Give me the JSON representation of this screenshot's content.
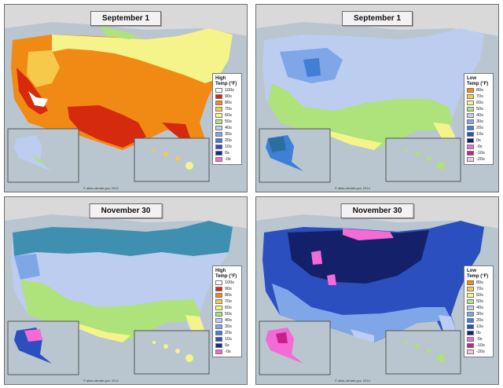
{
  "panels": [
    {
      "id": "p1",
      "title": "September 1",
      "legend_title": [
        "High",
        "Temp (°F)"
      ],
      "legend_items": [
        "100s",
        "90s",
        "80s",
        "70s",
        "60s",
        "50s",
        "40s",
        "30s",
        "20s",
        "10s",
        "0s",
        "-0s"
      ]
    },
    {
      "id": "p2",
      "title": "September 1",
      "legend_title": [
        "Low",
        "Temp (°F)"
      ],
      "legend_items": [
        "80s",
        "70s",
        "60s",
        "50s",
        "40s",
        "30s",
        "20s",
        "10s",
        "0s",
        "-0s",
        "-10s",
        "-20s"
      ]
    },
    {
      "id": "p3",
      "title": "November 30",
      "legend_title": [
        "High",
        "Temp (°F)"
      ],
      "legend_items": [
        "100s",
        "90s",
        "80s",
        "70s",
        "60s",
        "50s",
        "40s",
        "30s",
        "20s",
        "10s",
        "0s",
        "-0s"
      ]
    },
    {
      "id": "p4",
      "title": "November 30",
      "legend_title": [
        "Low",
        "Temp (°F)"
      ],
      "legend_items": [
        "80s",
        "70s",
        "60s",
        "50s",
        "40s",
        "30s",
        "20s",
        "10s",
        "0s",
        "-0s",
        "-10s",
        "-20s"
      ]
    }
  ],
  "credit": "© atlas.climate.gov, 2014",
  "colors": {
    "high_scale": [
      "#ffffff",
      "#d62a0e",
      "#f08a14",
      "#f6c94a",
      "#f4f48a",
      "#aee27a",
      "#bccdf0",
      "#7fa6e6",
      "#3f7fd6",
      "#2b4fbf",
      "#1a2a8c",
      "#f46ad6",
      "#f0a0e6"
    ],
    "low_scale": [
      "#f08a14",
      "#f6c94a",
      "#f4f48a",
      "#aee27a",
      "#bccdf0",
      "#7fa6e6",
      "#3f7fd6",
      "#2b4fbf",
      "#15206a",
      "#f46ad6",
      "#c8208a",
      "#f0c8e6"
    ],
    "water": "#b9c6cf",
    "land_outside": "#d9d9d9"
  }
}
